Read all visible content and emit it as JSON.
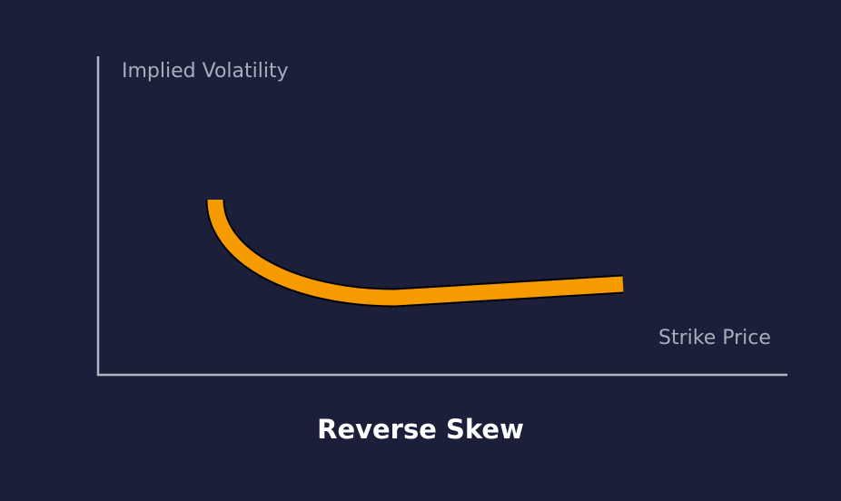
{
  "chart_data": {
    "type": "line",
    "title": "Reverse Skew",
    "xlabel": "Strike Price",
    "ylabel": "Implied Volatility",
    "grid": false,
    "shape": "high at low strikes, falling to a minimum, then rising slightly at higher strikes"
  },
  "colors": {
    "background": "#1c1f3a",
    "curve": "#f59b00",
    "axis": "#b0b3c0",
    "label": "#a9acba",
    "title": "#ffffff"
  }
}
